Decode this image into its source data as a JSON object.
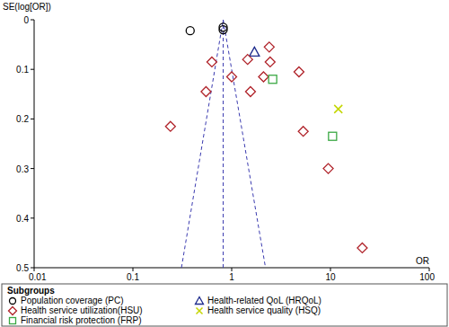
{
  "chart_data": {
    "type": "scatter",
    "log": "x",
    "y_label": "SE(log[OR])",
    "x_label": "OR",
    "legend_title": "Subgroups",
    "legend": "bottom",
    "xlim": [
      0.01,
      100
    ],
    "xticks": [
      0.01,
      0.1,
      1,
      10,
      100
    ],
    "ylim": [
      0,
      0.5
    ],
    "yticks": [
      0,
      0.1,
      0.2,
      0.3,
      0.4,
      0.5
    ],
    "series": [
      {
        "name": "Population coverage (PC)",
        "color": "#000000",
        "marker": "circle",
        "x": [
          0.38,
          0.82,
          0.82
        ],
        "values": [
          0.022,
          0.015,
          0.02
        ]
      },
      {
        "name": "Health-related QoL (HRQoL)",
        "color": "#1c2a8c",
        "marker": "triangle",
        "x": [
          1.7
        ],
        "values": [
          0.065
        ]
      },
      {
        "name": "Health service utilization(HSU)",
        "color": "#b0232a",
        "marker": "diamond",
        "x": [
          0.24,
          0.63,
          0.55,
          1.0,
          1.45,
          1.55,
          2.1,
          2.4,
          2.45,
          4.8,
          5.3,
          9.5,
          21
        ],
        "values": [
          0.215,
          0.085,
          0.145,
          0.115,
          0.08,
          0.145,
          0.115,
          0.055,
          0.085,
          0.105,
          0.225,
          0.3,
          0.46
        ]
      },
      {
        "name": "Health service quality (HSQ)",
        "color": "#c4d600",
        "marker": "x",
        "x": [
          12
        ],
        "values": [
          0.18
        ]
      },
      {
        "name": "Financial risk protection (FRP)",
        "color": "#3aa843",
        "marker": "square",
        "x": [
          2.6,
          10.5
        ],
        "values": [
          0.12,
          0.235
        ]
      },
      {
        "type": "line",
        "line_style": "dashed",
        "color": "#3b3bb0",
        "x": [
          0.31,
          0.82,
          2.2
        ],
        "values": [
          0.5,
          0,
          0.5
        ]
      },
      {
        "type": "line",
        "line_style": "dashed",
        "color": "#3b3bb0",
        "x": [
          0.82,
          0.82
        ],
        "values": [
          0.5,
          0
        ]
      }
    ]
  }
}
